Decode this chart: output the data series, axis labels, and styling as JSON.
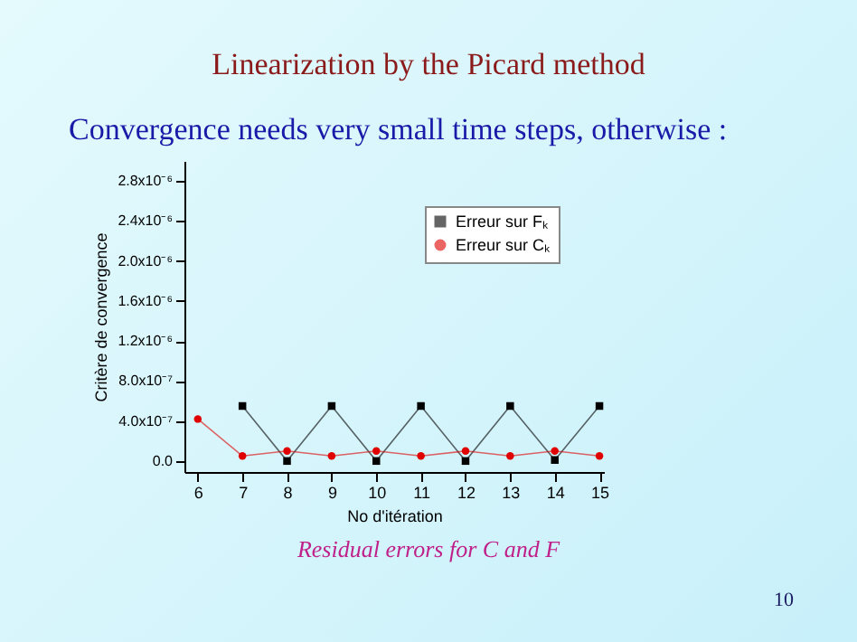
{
  "chart_data": {
    "type": "line",
    "title": "Linearization by the Picard method",
    "subtitle": "Convergence needs very small time steps, otherwise :",
    "xlabel": "No d'itération",
    "ylabel": "Critère de convergence",
    "annotations": [
      "Residual errors for C and F",
      "10"
    ],
    "x": [
      6,
      7,
      8,
      9,
      10,
      11,
      12,
      13,
      14,
      15
    ],
    "series": [
      {
        "name": "Erreur sur Fₖ",
        "color": "#000000",
        "marker": "square",
        "values": [
          null,
          5.5e-07,
          0,
          5.5e-07,
          0,
          5.5e-07,
          0,
          5.5e-07,
          1e-08,
          5.5e-07
        ]
      },
      {
        "name": "Erreur sur Cₖ",
        "color": "#e00000",
        "marker": "circle",
        "values": [
          4.2e-07,
          5e-08,
          1e-07,
          5e-08,
          1e-07,
          5e-08,
          1e-07,
          5e-08,
          1e-07,
          5e-08
        ]
      }
    ],
    "xlim": [
      5.7,
      15.1
    ],
    "xticks": [
      6,
      7,
      8,
      9,
      10,
      11,
      12,
      13,
      14,
      15
    ],
    "ylim": [
      -1.1e-07,
      3e-06
    ],
    "yticks": [
      {
        "value": 0,
        "label": "0.0"
      },
      {
        "value": 4e-07,
        "label": "4.0x10⁻⁷"
      },
      {
        "value": 8e-07,
        "label": "8.0x10⁻⁷"
      },
      {
        "value": 1.2e-06,
        "label": "1.2x10⁻⁶"
      },
      {
        "value": 1.6e-06,
        "label": "1.6x10⁻⁶"
      },
      {
        "value": 2e-06,
        "label": "2.0x10⁻⁶"
      },
      {
        "value": 2.4e-06,
        "label": "2.4x10⁻⁶"
      },
      {
        "value": 2.8e-06,
        "label": "2.8x10⁻⁶"
      }
    ],
    "legend": "top right",
    "grid": false
  }
}
